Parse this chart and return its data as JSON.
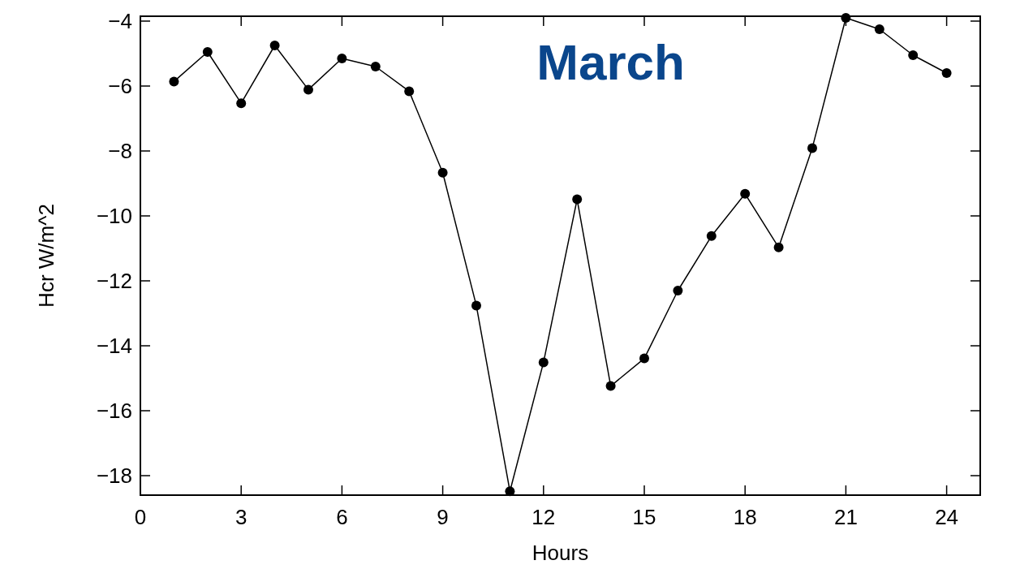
{
  "chart_data": {
    "type": "line",
    "title": "March",
    "xlabel": "Hours",
    "ylabel": "Hcr W/m^2",
    "x": [
      1,
      2,
      3,
      4,
      5,
      6,
      7,
      8,
      9,
      10,
      11,
      12,
      13,
      14,
      15,
      16,
      17,
      18,
      19,
      20,
      21,
      22,
      23,
      24
    ],
    "series": [
      {
        "color": "#000000",
        "values": [
          -5.86,
          -4.95,
          -6.53,
          -4.75,
          -6.11,
          -5.15,
          -5.4,
          -6.16,
          -8.67,
          -12.76,
          -18.48,
          -14.51,
          -9.49,
          -15.24,
          -14.39,
          -12.3,
          -10.62,
          -9.32,
          -10.97,
          -7.91,
          -3.9,
          -4.25,
          -5.05,
          -5.6
        ]
      }
    ],
    "xlim": [
      0,
      25
    ],
    "xticks": [
      0,
      3,
      6,
      9,
      12,
      15,
      18,
      21,
      24
    ],
    "ylim": [
      -18.6,
      -3.85
    ],
    "yticks": [
      -18,
      -16,
      -14,
      -12,
      -10,
      -8,
      -6,
      -4
    ],
    "marker": "circle",
    "line_style": "solid",
    "grid": false
  }
}
